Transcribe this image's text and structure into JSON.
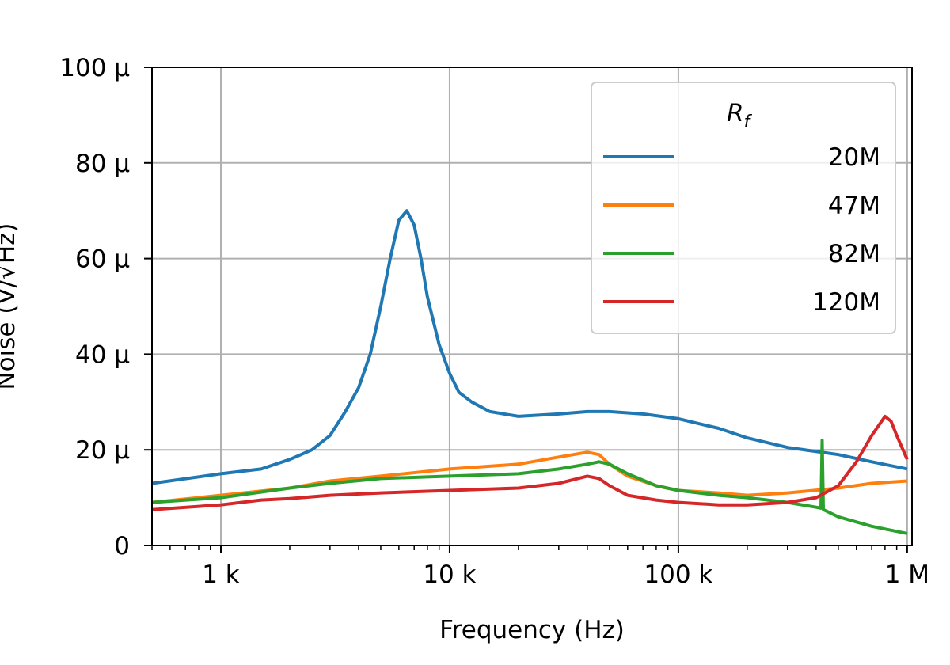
{
  "chart_data": {
    "type": "line",
    "xlabel": "Frequency (Hz)",
    "ylabel": "Noise (V/√Hz)",
    "xscale": "log",
    "xlim": [
      500,
      1050000
    ],
    "ylim": [
      0,
      0.0001
    ],
    "grid": true,
    "x_ticks": [
      {
        "value": 1000,
        "label": "1 k"
      },
      {
        "value": 10000,
        "label": "10 k"
      },
      {
        "value": 100000,
        "label": "100 k"
      },
      {
        "value": 1000000,
        "label": "1 M"
      }
    ],
    "y_ticks": [
      {
        "value": 0,
        "label": "0"
      },
      {
        "value": 2e-05,
        "label": "20 μ"
      },
      {
        "value": 4e-05,
        "label": "40 μ"
      },
      {
        "value": 6e-05,
        "label": "60 μ"
      },
      {
        "value": 8e-05,
        "label": "80 μ"
      },
      {
        "value": 0.0001,
        "label": "100 μ"
      }
    ],
    "legend": {
      "title": "R",
      "title_subscript": "f",
      "placement": "top-right"
    },
    "series": [
      {
        "name": "20M",
        "color": "#1f77b4",
        "x": [
          500,
          1000,
          1500,
          2000,
          2500,
          3000,
          3500,
          4000,
          4500,
          5000,
          5500,
          6000,
          6500,
          7000,
          7500,
          8000,
          9000,
          10000,
          11000,
          12500,
          15000,
          20000,
          30000,
          40000,
          50000,
          70000,
          100000,
          150000,
          200000,
          300000,
          500000,
          700000,
          1000000
        ],
        "y": [
          1.3e-05,
          1.5e-05,
          1.6e-05,
          1.8e-05,
          2e-05,
          2.3e-05,
          2.8e-05,
          3.3e-05,
          4e-05,
          5e-05,
          6e-05,
          6.8e-05,
          7e-05,
          6.7e-05,
          6e-05,
          5.2e-05,
          4.2e-05,
          3.6e-05,
          3.2e-05,
          3e-05,
          2.8e-05,
          2.7e-05,
          2.75e-05,
          2.8e-05,
          2.8e-05,
          2.75e-05,
          2.65e-05,
          2.45e-05,
          2.25e-05,
          2.05e-05,
          1.9e-05,
          1.75e-05,
          1.6e-05
        ]
      },
      {
        "name": "47M",
        "color": "#ff7f0e",
        "x": [
          500,
          1000,
          2000,
          3000,
          5000,
          10000,
          20000,
          30000,
          40000,
          45000,
          50000,
          60000,
          80000,
          100000,
          150000,
          200000,
          300000,
          500000,
          700000,
          1000000
        ],
        "y": [
          9e-06,
          1.05e-05,
          1.2e-05,
          1.35e-05,
          1.45e-05,
          1.6e-05,
          1.7e-05,
          1.85e-05,
          1.95e-05,
          1.9e-05,
          1.7e-05,
          1.45e-05,
          1.25e-05,
          1.15e-05,
          1.1e-05,
          1.05e-05,
          1.1e-05,
          1.2e-05,
          1.3e-05,
          1.35e-05
        ]
      },
      {
        "name": "82M",
        "color": "#2ca02c",
        "x": [
          500,
          1000,
          2000,
          3000,
          5000,
          10000,
          20000,
          30000,
          40000,
          45000,
          50000,
          60000,
          80000,
          100000,
          150000,
          200000,
          300000,
          400000,
          420000,
          425000,
          430000,
          500000,
          700000,
          1000000
        ],
        "y": [
          9e-06,
          1e-05,
          1.2e-05,
          1.3e-05,
          1.4e-05,
          1.45e-05,
          1.5e-05,
          1.6e-05,
          1.7e-05,
          1.75e-05,
          1.7e-05,
          1.5e-05,
          1.25e-05,
          1.15e-05,
          1.05e-05,
          1e-05,
          9e-06,
          8e-06,
          7.8e-06,
          2.2e-05,
          7.5e-06,
          6e-06,
          4e-06,
          2.5e-06
        ]
      },
      {
        "name": "120M",
        "color": "#d62728",
        "x": [
          500,
          1000,
          1500,
          2000,
          3000,
          5000,
          10000,
          20000,
          30000,
          40000,
          45000,
          50000,
          60000,
          80000,
          100000,
          150000,
          200000,
          300000,
          400000,
          500000,
          600000,
          700000,
          800000,
          850000,
          900000,
          1000000
        ],
        "y": [
          7.5e-06,
          8.5e-06,
          9.5e-06,
          9.8e-06,
          1.05e-05,
          1.1e-05,
          1.15e-05,
          1.2e-05,
          1.3e-05,
          1.45e-05,
          1.4e-05,
          1.25e-05,
          1.05e-05,
          9.5e-06,
          9e-06,
          8.5e-06,
          8.5e-06,
          9e-06,
          1e-05,
          1.25e-05,
          1.75e-05,
          2.3e-05,
          2.7e-05,
          2.6e-05,
          2.3e-05,
          1.8e-05
        ]
      }
    ]
  }
}
